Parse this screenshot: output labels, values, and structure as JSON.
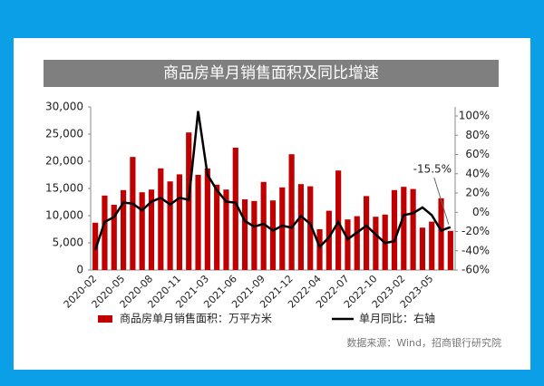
{
  "chart_data": {
    "type": "bar-line",
    "title": "商品房单月销售面积及同比增速",
    "categories": [
      "2020-02",
      null,
      null,
      "2020-05",
      null,
      null,
      "2020-08",
      null,
      null,
      "2020-11",
      null,
      null,
      "2021-03",
      null,
      null,
      "2021-06",
      null,
      null,
      "2021-09",
      null,
      null,
      "2021-12",
      null,
      null,
      "2022-04",
      null,
      null,
      "2022-07",
      null,
      null,
      "2022-10",
      null,
      null,
      "2023-02",
      null,
      null,
      "2023-05",
      null,
      null
    ],
    "series": [
      {
        "name": "商品房单月销售面积：万平方米",
        "color": "#c00000",
        "type": "bar",
        "values": [
          8700,
          13700,
          12000,
          14700,
          20800,
          14300,
          14800,
          18700,
          16300,
          17600,
          25300,
          17500,
          18700,
          15700,
          14800,
          22500,
          13000,
          12700,
          16200,
          12800,
          15200,
          21300,
          15800,
          15400,
          7500,
          10900,
          18300,
          9300,
          9900,
          13600,
          9800,
          10200,
          14700,
          15300,
          14900,
          7800,
          8900,
          13200,
          7200
        ]
      },
      {
        "name": "单月同比：右轴",
        "color": "#000000",
        "type": "line",
        "axis": "y2",
        "values": [
          -39,
          -10,
          -5,
          10,
          9,
          2,
          11,
          15,
          8,
          15,
          13,
          105,
          39,
          23,
          11,
          10,
          -9,
          -15,
          -12,
          -19,
          -14,
          -16,
          -4,
          -12,
          -36,
          -26,
          -10,
          -28,
          -21,
          -14,
          -23,
          -32,
          -30,
          -3,
          -1,
          5,
          -3,
          -19,
          -15.5
        ]
      }
    ],
    "ylim": [
      0,
      30000
    ],
    "yticks": [
      0,
      {
        "value": 5000,
        "label": "5,000"
      },
      {
        "value": 10000,
        "label": "10,000"
      },
      {
        "value": 15000,
        "label": "15,000"
      },
      {
        "value": 20000,
        "label": "20,000"
      },
      {
        "value": 25000,
        "label": "25,000"
      },
      {
        "value": 30000,
        "label": "30,000"
      }
    ],
    "y2lim": [
      -60,
      100
    ],
    "y2ticks": [
      {
        "value": -60,
        "label": "-60%"
      },
      {
        "value": -40,
        "label": "-40%"
      },
      {
        "value": -20,
        "label": "-20%"
      },
      {
        "value": 0,
        "label": "0%"
      },
      {
        "value": 20,
        "label": "20%"
      },
      {
        "value": 40,
        "label": "40%"
      },
      {
        "value": 60,
        "label": "60%"
      },
      {
        "value": 80,
        "label": "80%"
      },
      {
        "value": 100,
        "label": "100%"
      }
    ],
    "annotation": "-15.5%",
    "source": "数据来源：Wind，招商银行研究院"
  }
}
